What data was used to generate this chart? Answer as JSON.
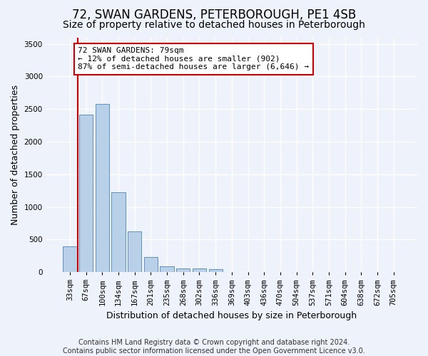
{
  "title": "72, SWAN GARDENS, PETERBOROUGH, PE1 4SB",
  "subtitle": "Size of property relative to detached houses in Peterborough",
  "xlabel": "Distribution of detached houses by size in Peterborough",
  "ylabel": "Number of detached properties",
  "categories": [
    "33sqm",
    "67sqm",
    "100sqm",
    "134sqm",
    "167sqm",
    "201sqm",
    "235sqm",
    "268sqm",
    "302sqm",
    "336sqm",
    "369sqm",
    "403sqm",
    "436sqm",
    "470sqm",
    "504sqm",
    "537sqm",
    "571sqm",
    "604sqm",
    "638sqm",
    "672sqm",
    "705sqm"
  ],
  "values": [
    400,
    2420,
    2580,
    1220,
    620,
    235,
    90,
    55,
    55,
    45,
    0,
    0,
    0,
    0,
    0,
    0,
    0,
    0,
    0,
    0,
    0
  ],
  "bar_color": "#b8d0e8",
  "bar_edge_color": "#6090c0",
  "annotation_text_lines": [
    "72 SWAN GARDENS: 79sqm",
    "← 12% of detached houses are smaller (902)",
    "87% of semi-detached houses are larger (6,646) →"
  ],
  "annotation_box_color": "#ffffff",
  "annotation_box_edge_color": "#cc0000",
  "red_line_color": "#cc0000",
  "red_line_x": 0.5,
  "ylim": [
    0,
    3600
  ],
  "yticks": [
    0,
    500,
    1000,
    1500,
    2000,
    2500,
    3000,
    3500
  ],
  "footer_line1": "Contains HM Land Registry data © Crown copyright and database right 2024.",
  "footer_line2": "Contains public sector information licensed under the Open Government Licence v3.0.",
  "bg_color": "#eef2fa",
  "plot_bg_color": "#eef2fa",
  "grid_color": "#ffffff",
  "title_fontsize": 12,
  "subtitle_fontsize": 10,
  "axis_label_fontsize": 9,
  "tick_fontsize": 7.5,
  "annotation_fontsize": 8,
  "footer_fontsize": 7
}
